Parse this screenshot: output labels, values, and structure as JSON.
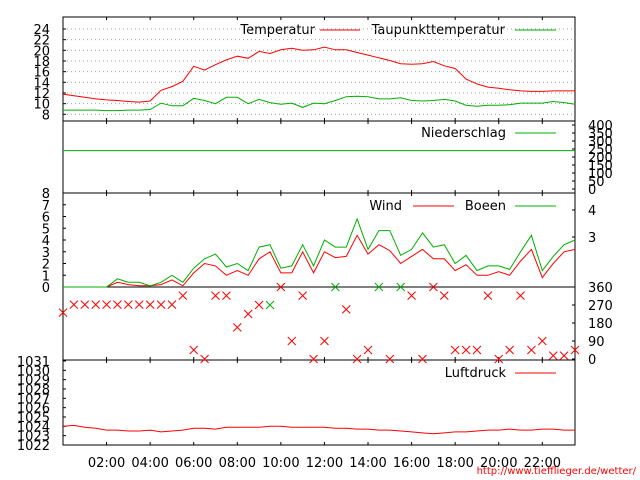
{
  "colors": {
    "red": "#ff0000",
    "green": "#00b000",
    "frame": "#000000",
    "grid": "#a0a0a0"
  },
  "source_url": "http://www.tiefflieger.de/wetter/",
  "x_axis": {
    "ticks": [
      "02:00",
      "04:00",
      "06:00",
      "08:00",
      "10:00",
      "12:00",
      "14:00",
      "16:00",
      "18:00",
      "20:00",
      "22:00"
    ],
    "tick_hours": [
      2,
      4,
      6,
      8,
      10,
      12,
      14,
      16,
      18,
      20,
      22
    ],
    "range_hours": [
      0,
      23.5
    ]
  },
  "chart_data": [
    {
      "type": "line",
      "panel": "temperature",
      "yticks": [
        "24",
        "22",
        "20",
        "18",
        "16",
        "14",
        "12",
        "10",
        "8"
      ],
      "ylim": [
        7.5,
        25.5
      ],
      "grid": true,
      "legend_position": "top",
      "x": [
        0,
        0.5,
        1,
        1.5,
        2,
        2.5,
        3,
        3.5,
        4,
        4.5,
        5,
        5.5,
        6,
        6.5,
        7,
        7.5,
        8,
        8.5,
        9,
        9.5,
        10,
        10.5,
        11,
        11.5,
        12,
        12.5,
        13,
        13.5,
        14,
        14.5,
        15,
        15.5,
        16,
        16.5,
        17,
        17.5,
        18,
        18.5,
        19,
        19.5,
        20,
        20.5,
        21,
        21.5,
        22,
        22.5,
        23,
        23.5
      ],
      "series": [
        {
          "name": "Temperatur",
          "color": "#ff0000",
          "values": [
            11.8,
            11.5,
            11.2,
            10.9,
            10.7,
            10.6,
            10.4,
            10.3,
            10.5,
            12.5,
            13.2,
            14.2,
            17.0,
            16.3,
            17.3,
            18.2,
            18.9,
            18.5,
            19.8,
            19.4,
            20.1,
            20.4,
            20.0,
            20.1,
            20.6,
            20.1,
            20.1,
            19.6,
            19.1,
            18.6,
            18.1,
            17.5,
            17.4,
            17.5,
            17.9,
            17.1,
            16.6,
            14.6,
            13.7,
            13.1,
            12.9,
            12.6,
            12.4,
            12.3,
            12.3,
            12.4,
            12.4,
            12.4
          ]
        },
        {
          "name": "Taupunkttemperatur",
          "color": "#00b000",
          "values": [
            8.8,
            8.8,
            8.8,
            8.8,
            8.7,
            8.7,
            8.8,
            8.8,
            8.9,
            10.1,
            9.6,
            9.6,
            11.0,
            10.6,
            10.0,
            11.2,
            11.2,
            10.0,
            10.8,
            10.2,
            9.9,
            10.1,
            9.3,
            10.1,
            10.0,
            10.6,
            11.3,
            11.4,
            11.3,
            10.9,
            10.9,
            11.1,
            10.6,
            10.5,
            10.6,
            10.8,
            10.5,
            9.7,
            9.5,
            9.7,
            9.7,
            9.8,
            10.1,
            10.1,
            10.1,
            10.4,
            10.2,
            9.9
          ]
        }
      ]
    },
    {
      "type": "line",
      "panel": "precipitation",
      "yticks": [
        "400",
        "350",
        "300",
        "250",
        "200",
        "150",
        "100",
        "50",
        "0"
      ],
      "ylim": [
        0,
        400
      ],
      "series": [
        {
          "name": "Niederschlag",
          "color": "#00b000",
          "values": [
            240
          ]
        }
      ]
    },
    {
      "type": "line",
      "panel": "wind",
      "yticks_left": [
        "8",
        "7",
        "6",
        "5",
        "4",
        "3",
        "2",
        "1",
        "0"
      ],
      "yticks_right": [
        "4",
        "3"
      ],
      "ylim": [
        0,
        8
      ],
      "x": [
        0,
        0.5,
        1,
        1.5,
        2,
        2.5,
        3,
        3.5,
        4,
        4.5,
        5,
        5.5,
        6,
        6.5,
        7,
        7.5,
        8,
        8.5,
        9,
        9.5,
        10,
        10.5,
        11,
        11.5,
        12,
        12.5,
        13,
        13.5,
        14,
        14.5,
        15,
        15.5,
        16,
        16.5,
        17,
        17.5,
        18,
        18.5,
        19,
        19.5,
        20,
        20.5,
        21,
        21.5,
        22,
        22.5,
        23,
        23.5
      ],
      "series": [
        {
          "name": "Wind",
          "color": "#ff0000",
          "values": [
            0,
            0,
            0,
            0,
            0,
            0.4,
            0.2,
            0.1,
            0.1,
            0.2,
            0.6,
            0.1,
            1.2,
            2.0,
            1.8,
            1.0,
            1.4,
            1.0,
            2.4,
            3.0,
            1.2,
            1.2,
            3.0,
            1.2,
            3.0,
            2.5,
            2.6,
            4.4,
            2.8,
            3.6,
            3.1,
            2.0,
            2.6,
            3.2,
            2.4,
            2.4,
            1.4,
            1.9,
            1.0,
            1.0,
            1.3,
            1.0,
            2.2,
            3.2,
            0.8,
            2.0,
            3.0,
            3.2
          ]
        },
        {
          "name": "Boeen",
          "color": "#00b000",
          "values": [
            0,
            0,
            0,
            0,
            0,
            0.7,
            0.4,
            0.4,
            0.1,
            0.4,
            1.0,
            0.4,
            1.6,
            2.4,
            2.8,
            1.7,
            2.0,
            1.4,
            3.4,
            3.6,
            1.6,
            1.8,
            3.6,
            1.8,
            4.0,
            3.4,
            3.4,
            5.8,
            3.2,
            4.8,
            4.8,
            2.7,
            3.2,
            4.6,
            3.4,
            3.6,
            2.0,
            2.7,
            1.4,
            1.8,
            1.8,
            1.5,
            3.0,
            4.4,
            1.4,
            2.6,
            3.6,
            4.0
          ]
        }
      ]
    },
    {
      "type": "scatter",
      "panel": "wind_direction",
      "yticks": [
        "360",
        "270",
        "180",
        "90",
        "0"
      ],
      "ylim": [
        0,
        360
      ],
      "marker": "x",
      "x": [
        0,
        0.5,
        1,
        1.5,
        2,
        2.5,
        3,
        3.5,
        4,
        4.5,
        5,
        5.5,
        6,
        6.5,
        7,
        7.5,
        8,
        8.5,
        9,
        9.5,
        10,
        10.5,
        11,
        11.5,
        12,
        12.5,
        13,
        13.5,
        14,
        14.5,
        15,
        15.5,
        16,
        16.5,
        17,
        17.5,
        18,
        18.5,
        19,
        19.5,
        20,
        20.5,
        21,
        21.5,
        22,
        22.5,
        23,
        23.5
      ],
      "values": [
        232,
        272,
        272,
        272,
        272,
        272,
        272,
        272,
        272,
        272,
        272,
        317,
        45,
        0,
        317,
        317,
        158,
        225,
        270,
        270,
        360,
        90,
        317,
        0,
        90,
        360,
        248,
        0,
        45,
        360,
        0,
        360,
        317,
        0,
        360,
        317,
        45,
        45,
        45,
        317,
        0,
        45,
        317,
        45,
        90,
        17,
        17,
        45
      ]
    },
    {
      "type": "line",
      "panel": "pressure",
      "yticks": [
        "1031",
        "1030",
        "1029",
        "1028",
        "1027",
        "1026",
        "1025",
        "1024",
        "1023",
        "1022"
      ],
      "ylim": [
        1022,
        1031
      ],
      "x": [
        0,
        0.5,
        1,
        1.5,
        2,
        2.5,
        3,
        3.5,
        4,
        4.5,
        5,
        5.5,
        6,
        6.5,
        7,
        7.5,
        8,
        8.5,
        9,
        9.5,
        10,
        10.5,
        11,
        11.5,
        12,
        12.5,
        13,
        13.5,
        14,
        14.5,
        15,
        15.5,
        16,
        16.5,
        17,
        17.5,
        18,
        18.5,
        19,
        19.5,
        20,
        20.5,
        21,
        21.5,
        22,
        22.5,
        23,
        23.5
      ],
      "series": [
        {
          "name": "Luftdruck",
          "color": "#ff0000",
          "values": [
            1024.0,
            1024.1,
            1023.9,
            1023.8,
            1023.6,
            1023.6,
            1023.5,
            1023.5,
            1023.6,
            1023.4,
            1023.5,
            1023.6,
            1023.8,
            1023.8,
            1023.7,
            1023.9,
            1023.9,
            1023.9,
            1023.9,
            1024.0,
            1024.0,
            1023.9,
            1023.9,
            1023.9,
            1023.9,
            1023.8,
            1023.8,
            1023.7,
            1023.7,
            1023.6,
            1023.6,
            1023.5,
            1023.4,
            1023.3,
            1023.2,
            1023.3,
            1023.4,
            1023.4,
            1023.5,
            1023.6,
            1023.6,
            1023.7,
            1023.6,
            1023.6,
            1023.7,
            1023.7,
            1023.6,
            1023.6
          ]
        }
      ]
    }
  ]
}
